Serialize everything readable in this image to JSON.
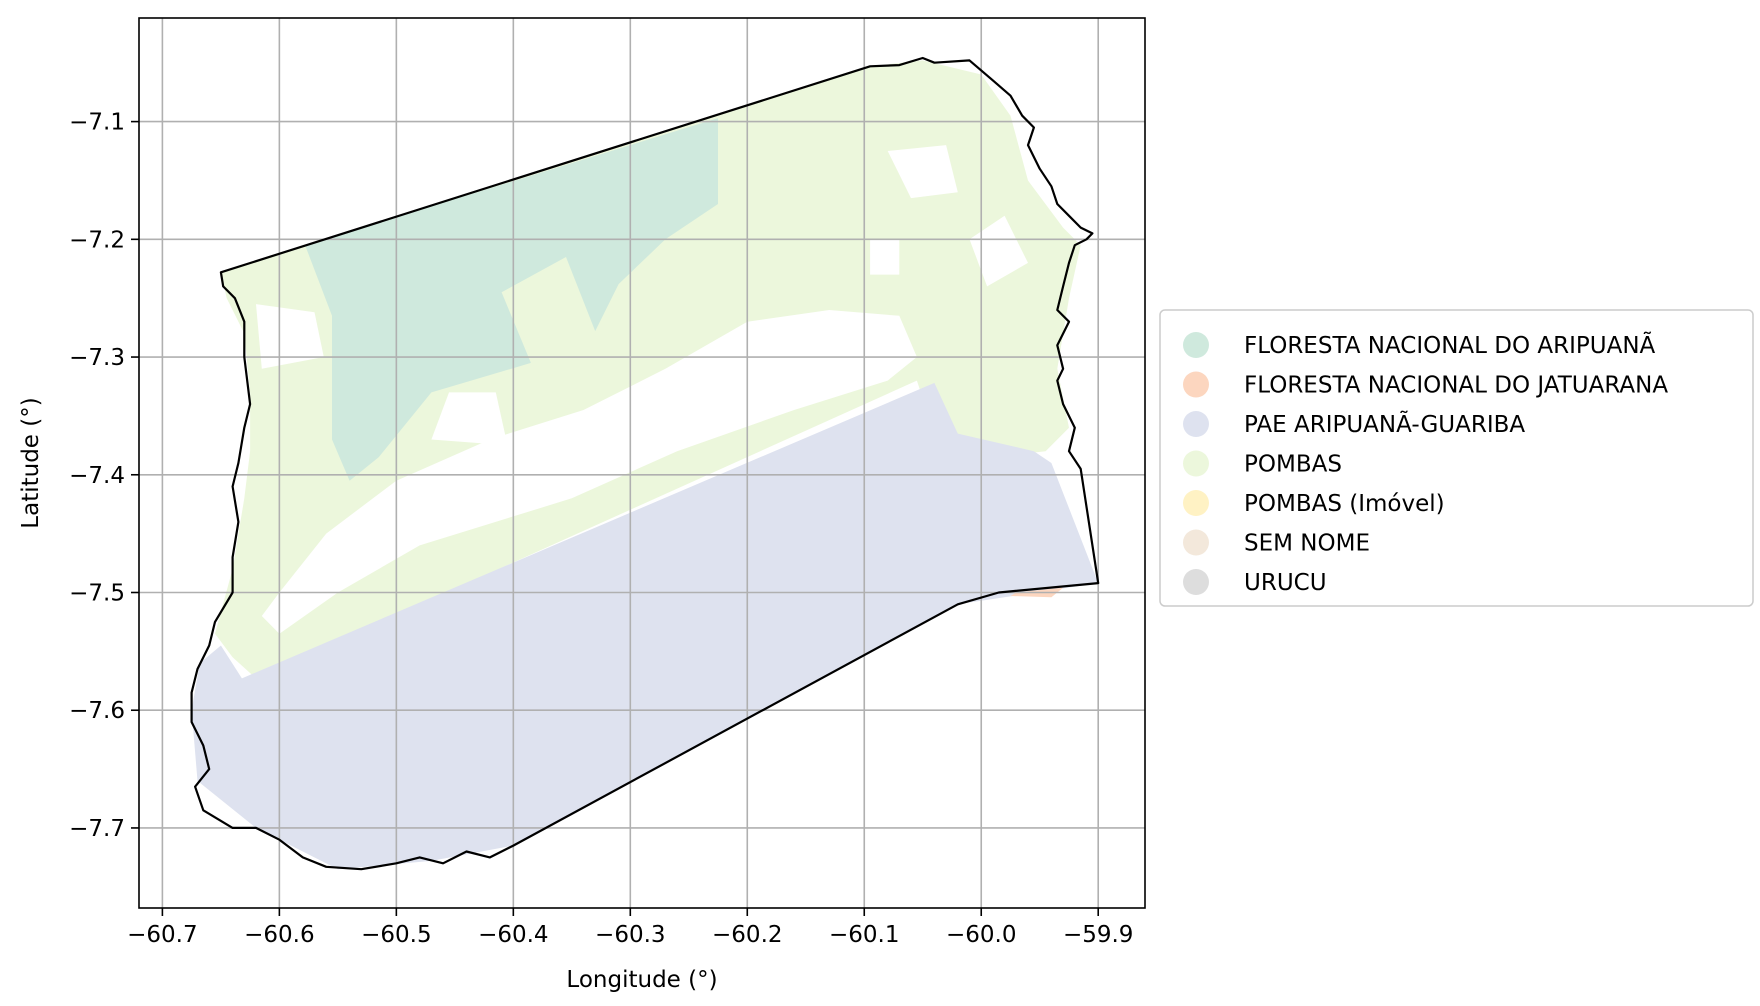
{
  "chart_data": {
    "type": "map",
    "xlabel": "Longitude (°)",
    "ylabel": "Latitude (°)",
    "xlim": [
      -60.72,
      -59.86
    ],
    "ylim": [
      -7.768,
      -7.012
    ],
    "xticks": [
      -60.7,
      -60.6,
      -60.5,
      -60.4,
      -60.3,
      -60.2,
      -60.1,
      -60.0,
      -59.9
    ],
    "xtick_labels": [
      "−60.7",
      "−60.6",
      "−60.5",
      "−60.4",
      "−60.3",
      "−60.2",
      "−60.1",
      "−60.0",
      "−59.9"
    ],
    "yticks": [
      -7.1,
      -7.2,
      -7.3,
      -7.4,
      -7.5,
      -7.6,
      -7.7
    ],
    "ytick_labels": [
      "−7.1",
      "−7.2",
      "−7.3",
      "−7.4",
      "−7.5",
      "−7.6",
      "−7.7"
    ],
    "grid": true,
    "legend_position": "right",
    "legend": [
      {
        "label": "FLORESTA NACIONAL DO ARIPUANÃ",
        "color": "#cfe9dd"
      },
      {
        "label": "FLORESTA NACIONAL DO JATUARANA",
        "color": "#fcd6bf"
      },
      {
        "label": "PAE ARIPUANÃ-GUARIBA",
        "color": "#dee2ef"
      },
      {
        "label": "POMBAS",
        "color": "#ecf7dc"
      },
      {
        "label": "POMBAS (Imóvel)",
        "color": "#fff2c4"
      },
      {
        "label": "SEM NOME",
        "color": "#f3e8db"
      },
      {
        "label": "URUCU",
        "color": "#dddddd"
      }
    ],
    "boundary_outline_color": "#000000",
    "regions": [
      {
        "name": "POMBAS",
        "color": "#ecf7dc",
        "polygon": [
          [
            -60.65,
            -7.228
          ],
          [
            -60.095,
            -7.053
          ],
          [
            -60.05,
            -7.048
          ],
          [
            -60.0,
            -7.06
          ],
          [
            -59.975,
            -7.095
          ],
          [
            -59.96,
            -7.15
          ],
          [
            -59.93,
            -7.19
          ],
          [
            -59.915,
            -7.205
          ],
          [
            -59.925,
            -7.25
          ],
          [
            -59.935,
            -7.31
          ],
          [
            -59.925,
            -7.36
          ],
          [
            -59.945,
            -7.38
          ],
          [
            -59.99,
            -7.385
          ],
          [
            -60.04,
            -7.365
          ],
          [
            -60.055,
            -7.32
          ],
          [
            -60.62,
            -7.573
          ],
          [
            -60.64,
            -7.555
          ],
          [
            -60.655,
            -7.535
          ],
          [
            -60.64,
            -7.48
          ],
          [
            -60.63,
            -7.42
          ],
          [
            -60.625,
            -7.38
          ],
          [
            -60.625,
            -7.33
          ],
          [
            -60.63,
            -7.28
          ],
          [
            -60.645,
            -7.25
          ]
        ]
      },
      {
        "name": "FLORESTA NACIONAL DO ARIPUANÃ",
        "color": "#cfe9dd",
        "polygon": [
          [
            -60.578,
            -7.205
          ],
          [
            -60.225,
            -7.097
          ],
          [
            -60.225,
            -7.17
          ],
          [
            -60.27,
            -7.2
          ],
          [
            -60.31,
            -7.238
          ],
          [
            -60.33,
            -7.278
          ],
          [
            -60.355,
            -7.215
          ],
          [
            -60.41,
            -7.245
          ],
          [
            -60.385,
            -7.305
          ],
          [
            -60.47,
            -7.33
          ],
          [
            -60.515,
            -7.385
          ],
          [
            -60.54,
            -7.405
          ],
          [
            -60.555,
            -7.37
          ],
          [
            -60.555,
            -7.265
          ]
        ]
      },
      {
        "name": "PAE ARIPUANÃ-GUARIBA",
        "color": "#dee2ef",
        "polygon": [
          [
            -60.65,
            -7.545
          ],
          [
            -60.632,
            -7.573
          ],
          [
            -60.04,
            -7.322
          ],
          [
            -60.02,
            -7.365
          ],
          [
            -59.955,
            -7.38
          ],
          [
            -59.94,
            -7.39
          ],
          [
            -59.9,
            -7.492
          ],
          [
            -60.02,
            -7.51
          ],
          [
            -60.4,
            -7.715
          ],
          [
            -60.47,
            -7.728
          ],
          [
            -60.55,
            -7.735
          ],
          [
            -60.62,
            -7.7
          ],
          [
            -60.67,
            -7.66
          ],
          [
            -60.675,
            -7.6
          ],
          [
            -60.668,
            -7.56
          ]
        ]
      },
      {
        "name": "FLORESTA NACIONAL DO JATUARANA",
        "color": "#fcd6bf",
        "polygon": [
          [
            -59.97,
            -7.5
          ],
          [
            -59.93,
            -7.496
          ],
          [
            -59.94,
            -7.504
          ],
          [
            -59.975,
            -7.503
          ]
        ]
      }
    ],
    "gaps": [
      {
        "polygon": [
          [
            -60.62,
            -7.255
          ],
          [
            -60.57,
            -7.262
          ],
          [
            -60.562,
            -7.3
          ],
          [
            -60.615,
            -7.31
          ]
        ]
      },
      {
        "polygon": [
          [
            -60.455,
            -7.33
          ],
          [
            -60.415,
            -7.33
          ],
          [
            -60.405,
            -7.375
          ],
          [
            -60.47,
            -7.37
          ]
        ]
      },
      {
        "polygon": [
          [
            -60.35,
            -7.42
          ],
          [
            -60.26,
            -7.38
          ],
          [
            -60.16,
            -7.345
          ],
          [
            -60.08,
            -7.32
          ],
          [
            -60.055,
            -7.3
          ],
          [
            -60.07,
            -7.265
          ],
          [
            -60.13,
            -7.26
          ],
          [
            -60.2,
            -7.27
          ],
          [
            -60.27,
            -7.31
          ],
          [
            -60.34,
            -7.345
          ],
          [
            -60.42,
            -7.37
          ],
          [
            -60.5,
            -7.405
          ],
          [
            -60.56,
            -7.45
          ],
          [
            -60.6,
            -7.5
          ],
          [
            -60.615,
            -7.52
          ],
          [
            -60.6,
            -7.535
          ],
          [
            -60.55,
            -7.5
          ],
          [
            -60.48,
            -7.46
          ]
        ]
      },
      {
        "polygon": [
          [
            -60.08,
            -7.125
          ],
          [
            -60.03,
            -7.12
          ],
          [
            -60.02,
            -7.16
          ],
          [
            -60.06,
            -7.165
          ]
        ]
      },
      {
        "polygon": [
          [
            -60.01,
            -7.2
          ],
          [
            -59.98,
            -7.18
          ],
          [
            -59.96,
            -7.22
          ],
          [
            -59.995,
            -7.24
          ]
        ]
      },
      {
        "polygon": [
          [
            -60.095,
            -7.2
          ],
          [
            -60.07,
            -7.2
          ],
          [
            -60.07,
            -7.23
          ],
          [
            -60.095,
            -7.23
          ]
        ]
      }
    ],
    "boundary": [
      [
        -60.65,
        -7.228
      ],
      [
        -60.095,
        -7.053
      ],
      [
        -60.07,
        -7.052
      ],
      [
        -60.05,
        -7.046
      ],
      [
        -60.04,
        -7.05
      ],
      [
        -60.01,
        -7.048
      ],
      [
        -59.99,
        -7.065
      ],
      [
        -59.975,
        -7.078
      ],
      [
        -59.965,
        -7.095
      ],
      [
        -59.955,
        -7.105
      ],
      [
        -59.96,
        -7.12
      ],
      [
        -59.95,
        -7.14
      ],
      [
        -59.94,
        -7.155
      ],
      [
        -59.935,
        -7.17
      ],
      [
        -59.925,
        -7.18
      ],
      [
        -59.915,
        -7.19
      ],
      [
        -59.905,
        -7.195
      ],
      [
        -59.91,
        -7.2
      ],
      [
        -59.92,
        -7.205
      ],
      [
        -59.925,
        -7.22
      ],
      [
        -59.93,
        -7.24
      ],
      [
        -59.935,
        -7.26
      ],
      [
        -59.925,
        -7.27
      ],
      [
        -59.935,
        -7.29
      ],
      [
        -59.93,
        -7.31
      ],
      [
        -59.935,
        -7.32
      ],
      [
        -59.93,
        -7.34
      ],
      [
        -59.92,
        -7.36
      ],
      [
        -59.925,
        -7.38
      ],
      [
        -59.915,
        -7.395
      ],
      [
        -59.9,
        -7.492
      ],
      [
        -59.985,
        -7.5
      ],
      [
        -60.02,
        -7.51
      ],
      [
        -60.4,
        -7.715
      ],
      [
        -60.41,
        -7.72
      ],
      [
        -60.42,
        -7.725
      ],
      [
        -60.44,
        -7.72
      ],
      [
        -60.46,
        -7.73
      ],
      [
        -60.48,
        -7.725
      ],
      [
        -60.5,
        -7.73
      ],
      [
        -60.53,
        -7.735
      ],
      [
        -60.56,
        -7.733
      ],
      [
        -60.58,
        -7.725
      ],
      [
        -60.6,
        -7.71
      ],
      [
        -60.62,
        -7.7
      ],
      [
        -60.64,
        -7.7
      ],
      [
        -60.665,
        -7.685
      ],
      [
        -60.672,
        -7.665
      ],
      [
        -60.66,
        -7.65
      ],
      [
        -60.665,
        -7.63
      ],
      [
        -60.675,
        -7.61
      ],
      [
        -60.675,
        -7.585
      ],
      [
        -60.67,
        -7.565
      ],
      [
        -60.66,
        -7.545
      ],
      [
        -60.655,
        -7.525
      ],
      [
        -60.64,
        -7.5
      ],
      [
        -60.64,
        -7.47
      ],
      [
        -60.635,
        -7.44
      ],
      [
        -60.64,
        -7.41
      ],
      [
        -60.635,
        -7.39
      ],
      [
        -60.63,
        -7.36
      ],
      [
        -60.625,
        -7.34
      ],
      [
        -60.63,
        -7.3
      ],
      [
        -60.63,
        -7.27
      ],
      [
        -60.638,
        -7.25
      ],
      [
        -60.648,
        -7.24
      ]
    ]
  }
}
